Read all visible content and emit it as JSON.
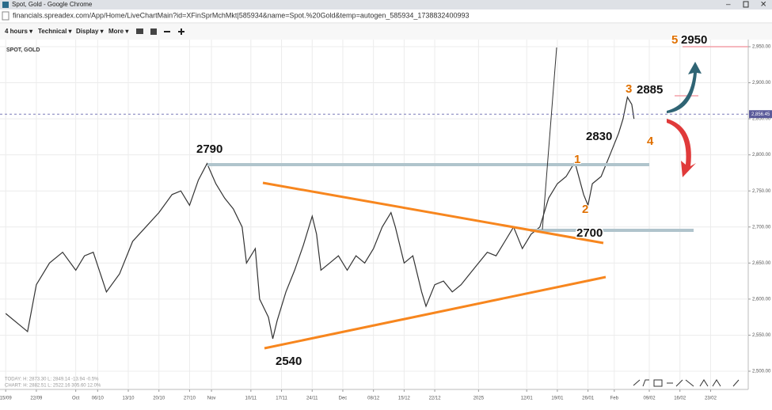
{
  "window": {
    "title": "Spot, Gold - Google Chrome",
    "url": "financials.spreadex.com/App/Home/LiveChartMain?id=XFinSprMchMkt|585934&name=Spot.%20Gold&temp=autogen_585934_1738832400993"
  },
  "toolbar": {
    "menus": [
      "4 hours ▾",
      "Technical ▾",
      "Display ▾",
      "More ▾"
    ]
  },
  "chart_data": {
    "type": "line",
    "title": "SPOT, GOLD",
    "x": [
      0,
      3,
      5,
      7,
      10,
      13,
      16,
      18,
      20,
      23,
      26,
      29,
      32,
      35,
      38,
      40,
      42,
      44,
      46,
      48,
      50,
      52,
      54,
      55,
      57,
      58,
      60,
      61,
      62,
      64,
      66,
      68,
      70,
      71,
      72,
      74,
      76,
      78,
      80,
      82,
      84,
      86,
      88,
      89,
      91,
      93,
      95,
      96,
      98,
      100,
      102,
      104,
      106,
      108,
      110,
      112,
      114,
      116,
      118,
      120,
      122,
      124,
      126,
      128,
      130,
      132,
      133,
      134,
      136,
      138,
      140,
      141,
      142,
      143,
      143.5
    ],
    "series": [
      {
        "name": "SPOT, GOLD",
        "color": "#333333",
        "values": [
          2580,
          2565,
          2555,
          2620,
          2650,
          2665,
          2640,
          2660,
          2665,
          2610,
          2635,
          2680,
          2700,
          2720,
          2745,
          2750,
          2730,
          2765,
          2788,
          2760,
          2740,
          2725,
          2700,
          2650,
          2670,
          2600,
          2575,
          2545,
          2570,
          2610,
          2640,
          2675,
          2715,
          2690,
          2640,
          2650,
          2660,
          2640,
          2660,
          2650,
          2670,
          2700,
          2720,
          2700,
          2650,
          2660,
          2610,
          2590,
          2620,
          2625,
          2610,
          2620,
          2635,
          2650,
          2665,
          2660,
          2680,
          2700,
          2670,
          2690,
          2700,
          2740,
          2760,
          2770,
          2790,
          2745,
          2730,
          2760,
          2770,
          2800,
          2830,
          2850,
          2880,
          2870,
          2850
        ]
      }
    ],
    "xlim": [
      -1.3,
      169.6
    ],
    "xticks": [
      {
        "value": 0,
        "label": "15/09"
      },
      {
        "value": 7,
        "label": "22/09"
      },
      {
        "value": 16,
        "label": "Oct"
      },
      {
        "value": 21,
        "label": "06/10"
      },
      {
        "value": 28,
        "label": "13/10"
      },
      {
        "value": 35,
        "label": "20/10"
      },
      {
        "value": 42,
        "label": "27/10"
      },
      {
        "value": 47,
        "label": "Nov"
      },
      {
        "value": 56,
        "label": "10/11"
      },
      {
        "value": 63,
        "label": "17/11"
      },
      {
        "value": 70,
        "label": "24/11"
      },
      {
        "value": 77,
        "label": "Dec"
      },
      {
        "value": 84,
        "label": "08/12"
      },
      {
        "value": 91,
        "label": "15/12"
      },
      {
        "value": 98,
        "label": "22/12"
      },
      {
        "value": 108,
        "label": "2025"
      },
      {
        "value": 119,
        "label": "12/01"
      },
      {
        "value": 126,
        "label": "19/01"
      },
      {
        "value": 133,
        "label": "26/01"
      },
      {
        "value": 139,
        "label": "Feb"
      },
      {
        "value": 147,
        "label": "09/02"
      },
      {
        "value": 154,
        "label": "16/02"
      },
      {
        "value": 161,
        "label": "23/02"
      }
    ],
    "ylim": [
      2500,
      2950
    ],
    "yticks": [
      {
        "value": 2500,
        "label": "2,500.00"
      },
      {
        "value": 2550,
        "label": "2,550.00"
      },
      {
        "value": 2600,
        "label": "2,600.00"
      },
      {
        "value": 2650,
        "label": "2,650.00"
      },
      {
        "value": 2700,
        "label": "2,700.00"
      },
      {
        "value": 2750,
        "label": "2,750.00"
      },
      {
        "value": 2800,
        "label": "2,800.00"
      },
      {
        "value": 2850,
        "label": "2,850.00"
      },
      {
        "value": 2900,
        "label": "2,900.00"
      },
      {
        "value": 2950,
        "label": "2,950.00"
      }
    ],
    "current_price": {
      "value": 2856.45,
      "label": "2,856.45"
    },
    "grid": true,
    "annotations": [
      "2790",
      "2540",
      "2700",
      "2830",
      "2885",
      "2950",
      "1",
      "2",
      "3",
      "4",
      "5"
    ],
    "stats": [
      "TODAY:   H: 2873.30   L: 2849.14   -13.94   -0.5%",
      "CHART:   H: 2882.51   L: 2522.16   305.60   12.0%"
    ]
  }
}
